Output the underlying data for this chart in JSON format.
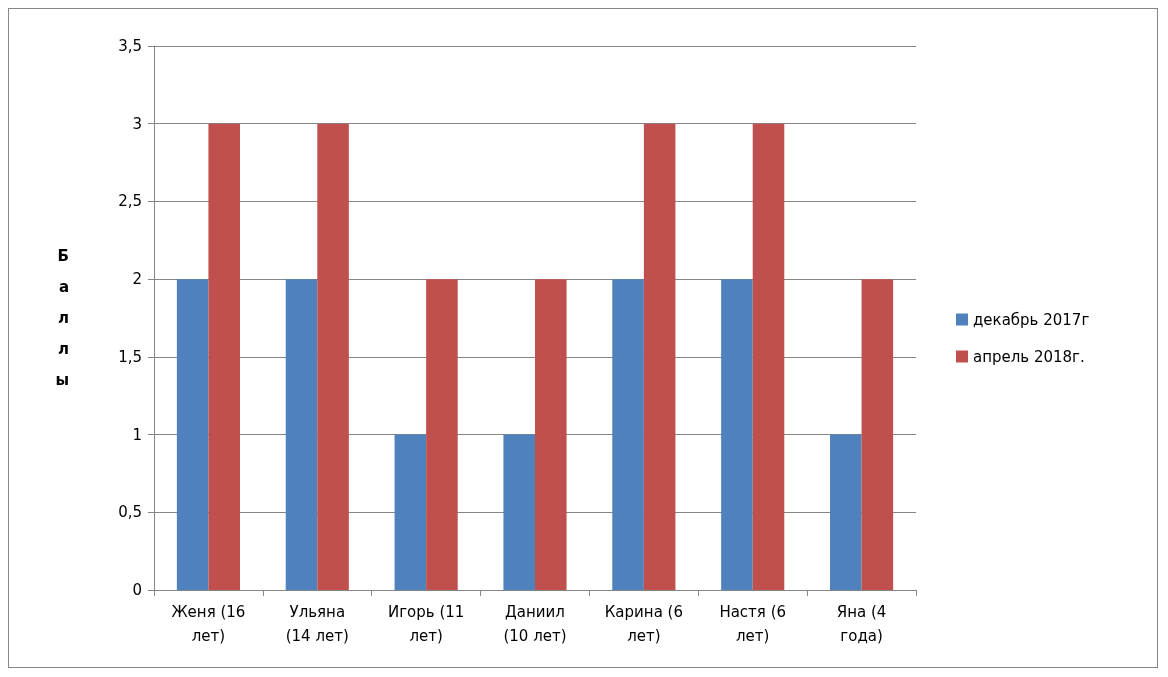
{
  "chart_data": {
    "type": "bar",
    "ylabel": "Баллы",
    "categories": [
      "Женя (16 лет)",
      "Ульяна (14 лет)",
      "Игорь (11 лет)",
      "Даниил (10 лет)",
      "Карина (6 лет)",
      "Настя (6 лет)",
      "Яна (4 года)"
    ],
    "series": [
      {
        "name": "декабрь 2017г",
        "color": "#4f81bd",
        "values": [
          2,
          2,
          1,
          1,
          2,
          2,
          1
        ]
      },
      {
        "name": "апрель 2018г.",
        "color": "#c0504d",
        "values": [
          3,
          3,
          2,
          2,
          3,
          3,
          2
        ]
      }
    ],
    "ylim": [
      0,
      3.5
    ],
    "yticks": [
      0,
      {
        "value": 0.5,
        "label": "0,5"
      },
      1,
      {
        "value": 1.5,
        "label": "1,5"
      },
      2,
      {
        "value": 2.5,
        "label": "2,5"
      },
      3,
      {
        "value": 3.5,
        "label": "3,5"
      }
    ],
    "grid": "y",
    "legend": "right"
  }
}
